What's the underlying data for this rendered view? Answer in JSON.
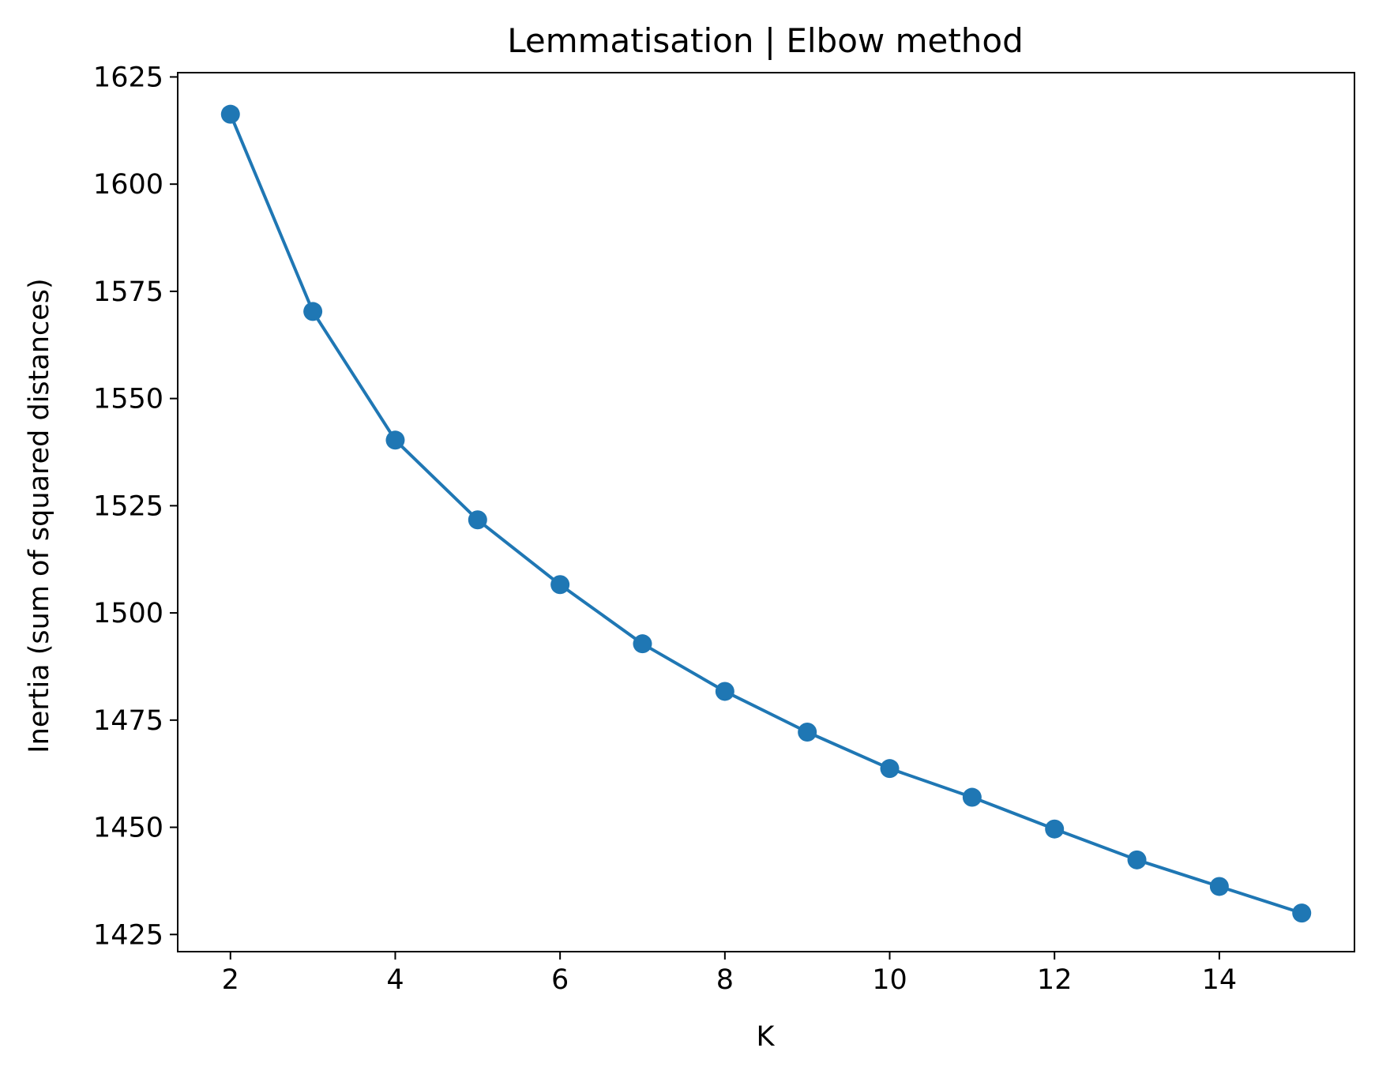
{
  "chart_data": {
    "type": "line",
    "title": "Lemmatisation | Elbow method",
    "xlabel": "K",
    "ylabel": "Inertia (sum of squared distances)",
    "xlim": [
      1.36,
      15.64
    ],
    "ylim": [
      1421,
      1626
    ],
    "xticks": [
      2,
      4,
      6,
      8,
      10,
      12,
      14
    ],
    "yticks": [
      1425,
      1450,
      1475,
      1500,
      1525,
      1550,
      1575,
      1600,
      1625
    ],
    "grid": false,
    "series": [
      {
        "x": [
          2,
          3,
          4,
          5,
          6,
          7,
          8,
          9,
          10,
          11,
          12,
          13,
          14,
          15
        ],
        "values": [
          1616.3,
          1570.3,
          1540.3,
          1521.7,
          1506.6,
          1492.8,
          1481.7,
          1472.2,
          1463.7,
          1457.0,
          1449.6,
          1442.4,
          1436.2,
          1430.0
        ],
        "color": "#1f77b4",
        "marker": "circle"
      }
    ]
  }
}
